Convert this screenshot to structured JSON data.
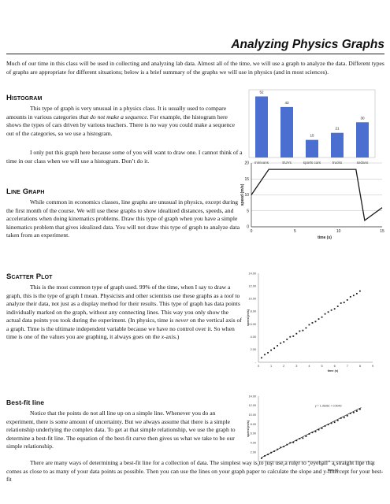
{
  "title": "Analyzing Physics Graphs",
  "intro": "Much of our time in this class will be used in collecting and analyzing lab data.  Almost all of the time, we will use a graph to analyze the data.  Different types of graphs are appropriate for different situations; below is a brief summary of the graphs we will use in physics (and in most sciences).",
  "sections": {
    "histogram": {
      "heading": "Histogram",
      "p1_a": "This type of graph is very unusual in a physics class.  It is usually used to compare amounts in various categories ",
      "p1_em": "that do not make a sequence",
      "p1_b": ".  For example, the histogram here shows the types of cars driven by various teachers.  There is no way you could make a sequence out of the categories, so we use a histogram.",
      "p2": "I only put this graph here because some of you will want to draw one.  I cannot think of a time in our class when we will use a histogram.  Don’t do it."
    },
    "line": {
      "heading": "Line Graph",
      "p1": "While common in economics classes, line graphs are unusual in physics, except during the first month of the course.  We will use these graphs to show idealized distances, speeds, and accelerations when doing kinematics problems.  Draw this type of graph when you have a simple kinematics problem that gives idealized data.  You will not draw this type of graph to analyze data taken from an experiment."
    },
    "scatter": {
      "heading": "Scatter Plot",
      "p1_a": "This is the most common type of graph used.  99% of the time, when I say to draw a graph, this is the type of graph I mean.  Physicists and other scientists use these graphs as a ",
      "p1_em1": "tool",
      "p1_b": " to analyze their data, not just as a display method for their results.  This type of graph has data points individually marked on the graph, without any connecting lines.  This way you only show the actual data points you took during the experiment.  (In physics, time is ",
      "p1_em2": "never",
      "p1_c": " on the vertical axis of a graph.  Time is the ultimate independent variable because we have no control over it.  So when time is one of the values you are graphing, it always goes on the ",
      "p1_em3": "x",
      "p1_d": "-axis.)"
    },
    "bestfit": {
      "heading": "Best-fit line",
      "p1": "Notice that the points do not all line up on a simple line.  Whenever you do an experiment, there is some amount of uncertainty.  But we always assume that there is a simple relationship underlying the complex data.  To get at that simple relationship, we use the graph to determine a best-fit line.  The equation of the best-fit curve then gives us what we take to be our simple relationship.",
      "p2": "There are many ways of determining a best-fit line for a collection of data.  The simplest way is to just use a ruler to “eyeball” a straight line that comes as close to as many of your data points as possible.  Then you can use the lines on your graph paper to calculate the slope and y-intercept for your best-fit"
    }
  },
  "charts": {
    "histogram": {
      "type": "bar",
      "categories": [
        "minivans",
        "SUVs",
        "sports cars",
        "trucks",
        "sedans"
      ],
      "values": [
        52,
        43,
        15,
        21,
        30
      ],
      "ylim": [
        0,
        55
      ],
      "bar_color": "#4a6fd1"
    },
    "line": {
      "type": "line",
      "x": [
        0,
        2,
        6,
        12,
        13,
        15
      ],
      "y": [
        10,
        18,
        18,
        18,
        2,
        6
      ],
      "xlabel": "time (s)",
      "ylabel": "speed (m/s)",
      "xlim": [
        0,
        15
      ],
      "ylim": [
        0,
        20
      ],
      "xticks": [
        "0",
        "5",
        "10",
        "15"
      ],
      "yticks": [
        "0",
        "5",
        "10",
        "15",
        "20"
      ],
      "line_color": "#1a1a1a"
    },
    "scatter": {
      "type": "scatter",
      "x": [
        0.25,
        0.5,
        0.75,
        1.0,
        1.25,
        1.5,
        1.75,
        2.0,
        2.25,
        2.5,
        2.75,
        3.0,
        3.25,
        3.5,
        3.75,
        4.0,
        4.25,
        4.5,
        4.75,
        5.0,
        5.25,
        5.5,
        5.75,
        6.0,
        6.25,
        6.5,
        6.75,
        7.0,
        7.25,
        7.5,
        7.75,
        8.0
      ],
      "y": [
        0.7,
        1.2,
        1.5,
        1.9,
        2.2,
        2.6,
        3.0,
        3.2,
        3.6,
        4.0,
        4.1,
        4.5,
        4.9,
        5.0,
        5.4,
        5.9,
        6.2,
        6.4,
        6.8,
        7.1,
        7.6,
        7.9,
        8.2,
        8.4,
        8.8,
        9.3,
        9.4,
        9.8,
        10.3,
        10.5,
        10.8,
        11.2
      ],
      "xlabel": "time (s)",
      "ylabel": "speed (m/s)",
      "xlim": [
        0,
        9
      ],
      "ylim": [
        0,
        14
      ],
      "xticks": [
        "0",
        "1",
        "2",
        "3",
        "4",
        "5",
        "6",
        "7",
        "8",
        "9"
      ],
      "yticks": [
        "-",
        "2.00",
        "4.00",
        "6.00",
        "8.00",
        "10.00",
        "12.00",
        "14.00"
      ]
    },
    "bestfit": {
      "type": "scatter",
      "x": [
        0.25,
        0.5,
        0.75,
        1.0,
        1.25,
        1.5,
        1.75,
        2.0,
        2.25,
        2.5,
        2.75,
        3.0,
        3.25,
        3.5,
        3.75,
        4.0,
        4.25,
        4.5,
        4.75,
        5.0,
        5.25,
        5.5,
        5.75,
        6.0,
        6.25,
        6.5,
        6.75,
        7.0,
        7.25,
        7.5,
        7.75,
        8.0
      ],
      "y": [
        0.7,
        1.2,
        1.5,
        1.9,
        2.2,
        2.6,
        3.0,
        3.2,
        3.6,
        4.0,
        4.1,
        4.5,
        4.9,
        5.0,
        5.4,
        5.9,
        6.2,
        6.4,
        6.8,
        7.1,
        7.6,
        7.9,
        8.2,
        8.4,
        8.8,
        9.3,
        9.4,
        9.8,
        10.3,
        10.5,
        10.8,
        11.2
      ],
      "equation": "y = 1.3636x + 0.5049",
      "fit_slope": 1.3636,
      "fit_intercept": 0.5049,
      "xlabel": "time (s)",
      "ylabel": "speed (m/s)",
      "xlim": [
        0,
        9
      ],
      "ylim": [
        0,
        14
      ],
      "xticks": [
        "0",
        "1",
        "2",
        "3",
        "4",
        "5",
        "6",
        "7",
        "8",
        "9"
      ],
      "yticks": [
        "-",
        "2.00",
        "4.00",
        "6.00",
        "8.00",
        "10.00",
        "12.00",
        "14.00"
      ]
    }
  }
}
